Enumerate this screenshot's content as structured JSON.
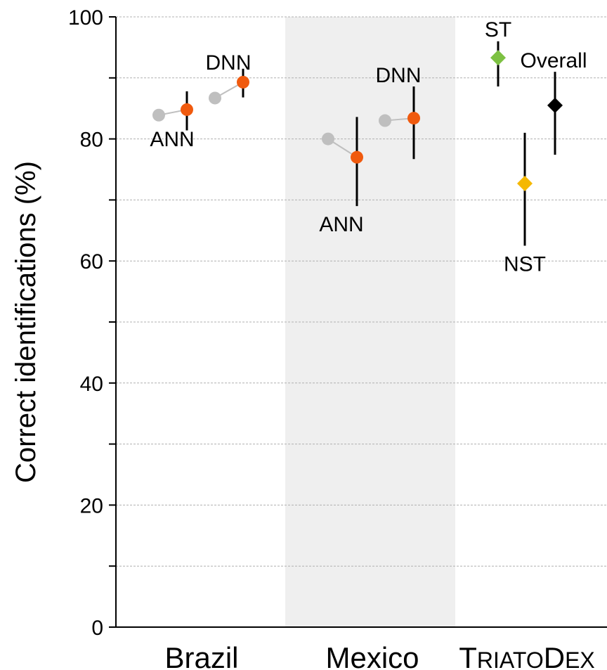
{
  "chart_data": {
    "type": "scatter",
    "ylabel": "Correct identifications (%)",
    "ylim": [
      0,
      100
    ],
    "yticks": [
      0,
      20,
      40,
      60,
      80,
      100
    ],
    "categories": [
      "Brazil",
      "Mexico",
      "TriatoDex"
    ],
    "category_display": [
      {
        "first": "Brazil",
        "rest": ""
      },
      {
        "first": "Mexico",
        "rest": ""
      },
      {
        "first": "T",
        "small1": "riato",
        "mid": "D",
        "small2": "ex"
      }
    ],
    "colors": {
      "prior": "#bfbfbf",
      "model": "#f05a0e",
      "st": "#7dc142",
      "nst": "#f5b800",
      "overall": "#000000",
      "shade": "#efefef",
      "grid": "#b0b0b0"
    },
    "groups": [
      {
        "category": "Brazil",
        "pairs": [
          {
            "label": "ANN",
            "prior": 83.9,
            "value": 84.8,
            "error": [
              81.4,
              87.8
            ]
          },
          {
            "label": "DNN",
            "prior": 86.7,
            "value": 89.3,
            "error": [
              86.8,
              91.5
            ]
          }
        ]
      },
      {
        "category": "Mexico",
        "pairs": [
          {
            "label": "ANN",
            "prior": 80.0,
            "value": 77.0,
            "error": [
              69.0,
              83.6
            ]
          },
          {
            "label": "DNN",
            "prior": 83.0,
            "value": 83.4,
            "error": [
              76.7,
              88.6
            ]
          }
        ]
      }
    ],
    "triatodex": [
      {
        "label": "ST",
        "value": 93.3,
        "error": [
          88.6,
          96.0
        ],
        "color": "st"
      },
      {
        "label": "NST",
        "value": 72.7,
        "error": [
          62.5,
          81.0
        ],
        "color": "nst"
      },
      {
        "label": "Overall",
        "value": 85.5,
        "error": [
          77.4,
          91.0
        ],
        "color": "overall"
      }
    ],
    "grid": true
  }
}
